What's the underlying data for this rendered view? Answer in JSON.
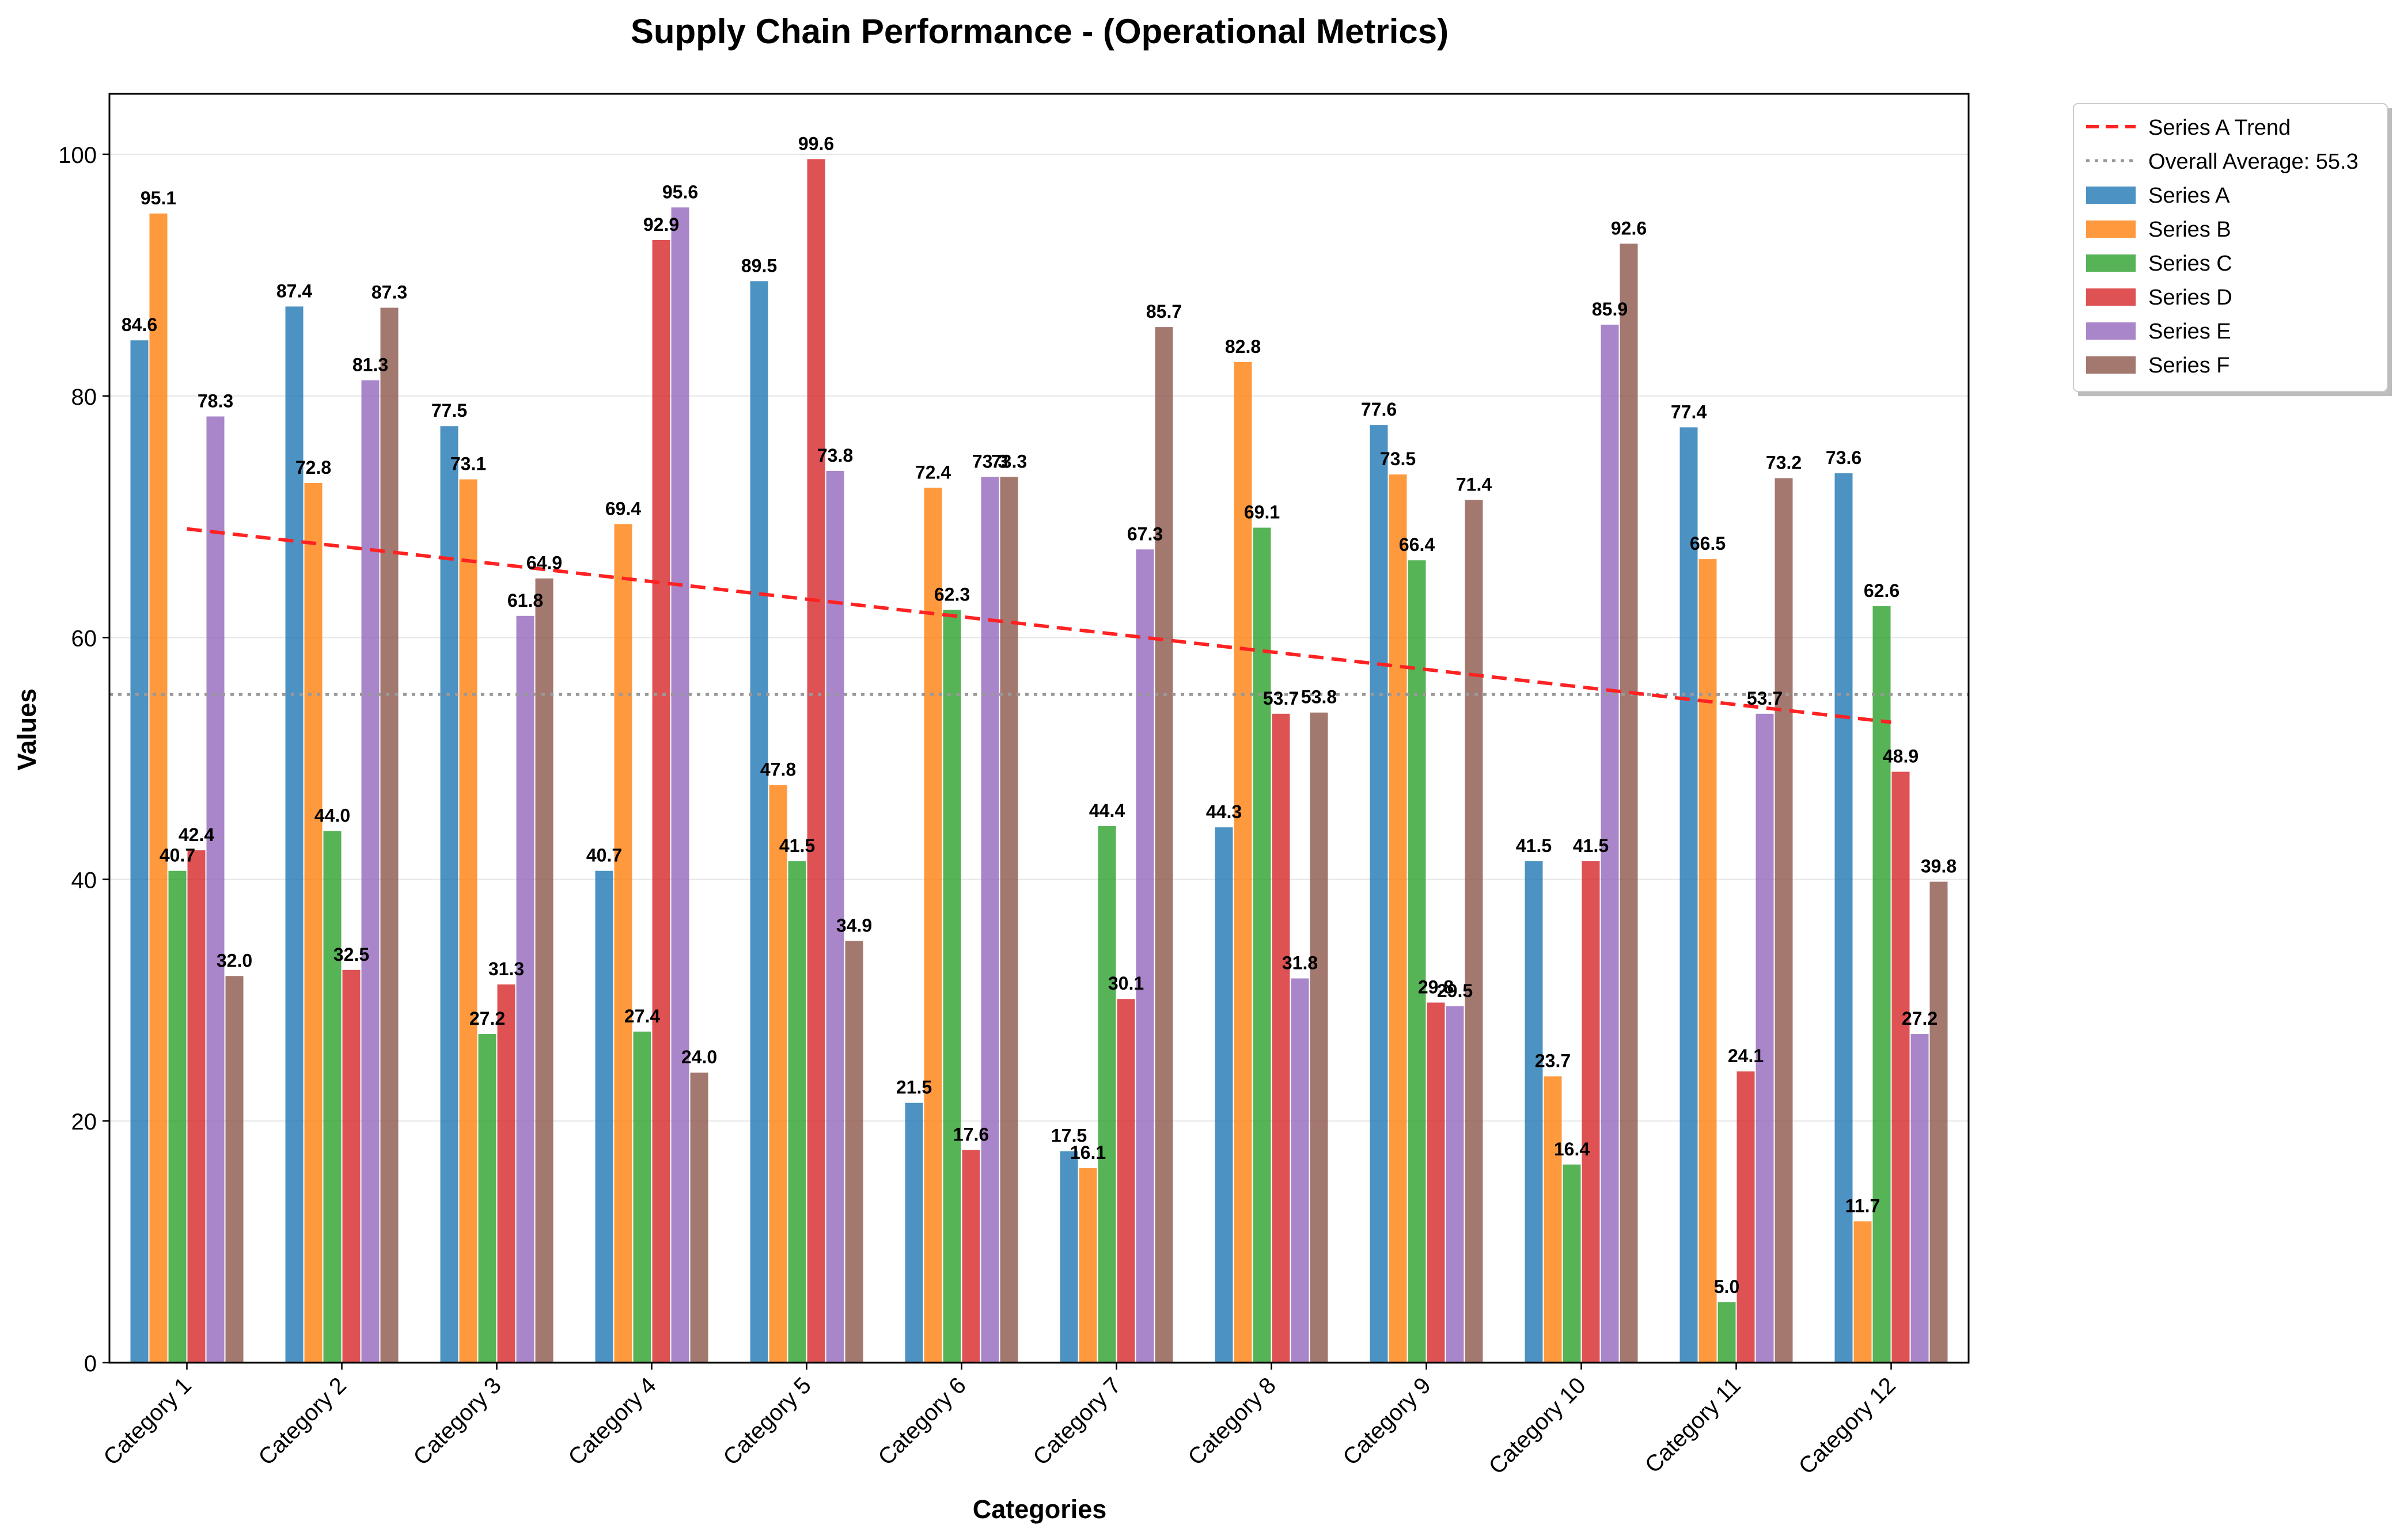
{
  "chart_data": {
    "type": "bar",
    "title": "Supply Chain Performance - (Operational Metrics)",
    "xlabel": "Categories",
    "ylabel": "Values",
    "ylim": [
      0,
      105
    ],
    "yticks": [
      0,
      20,
      40,
      60,
      80,
      100
    ],
    "grid": "y",
    "legend_position": "top-right",
    "categories": [
      "Category 1",
      "Category 2",
      "Category 3",
      "Category 4",
      "Category 5",
      "Category 6",
      "Category 7",
      "Category 8",
      "Category 9",
      "Category 10",
      "Category 11",
      "Category 12"
    ],
    "series": [
      {
        "name": "Series A",
        "color": "#1f77b4",
        "values": [
          84.6,
          87.4,
          77.5,
          40.7,
          89.5,
          21.5,
          17.5,
          44.3,
          77.6,
          41.5,
          77.4,
          73.6
        ]
      },
      {
        "name": "Series B",
        "color": "#ff7f0e",
        "values": [
          95.1,
          72.8,
          73.1,
          69.4,
          47.8,
          72.4,
          16.1,
          82.8,
          73.5,
          23.7,
          66.5,
          11.7
        ]
      },
      {
        "name": "Series C",
        "color": "#2ca02c",
        "values": [
          40.7,
          44.0,
          27.2,
          27.4,
          41.5,
          62.3,
          44.4,
          69.1,
          66.4,
          16.4,
          5.0,
          62.6
        ]
      },
      {
        "name": "Series D",
        "color": "#d62728",
        "values": [
          42.4,
          32.5,
          31.3,
          92.9,
          99.6,
          17.6,
          30.1,
          53.7,
          29.8,
          41.5,
          24.1,
          48.9
        ]
      },
      {
        "name": "Series E",
        "color": "#9467bd",
        "values": [
          78.3,
          81.3,
          61.8,
          95.6,
          73.8,
          73.3,
          67.3,
          31.8,
          29.5,
          85.9,
          53.7,
          27.2
        ]
      },
      {
        "name": "Series F",
        "color": "#8c564b",
        "values": [
          32.0,
          87.3,
          64.9,
          24.0,
          34.9,
          73.3,
          85.7,
          53.8,
          71.4,
          92.6,
          73.2,
          39.8
        ]
      }
    ],
    "trend": {
      "name": "Series A Trend",
      "color": "#ff2222",
      "start": 69.0,
      "end": 53.0
    },
    "average": {
      "name": "Overall Average",
      "value": 55.3,
      "color": "#999999"
    }
  }
}
